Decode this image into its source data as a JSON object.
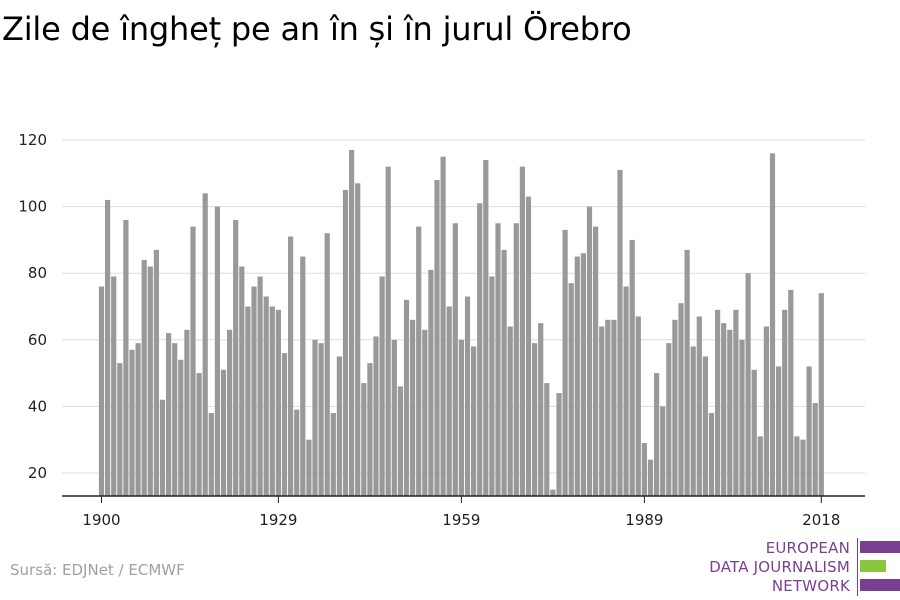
{
  "title": "Zile de îngheț pe an în și în jurul Örebro",
  "source": "Sursă: EDJNet / ECMWF",
  "logo": {
    "line1": "EUROPEAN",
    "line2": "DATA JOURNALISM",
    "line3": "NETWORK",
    "colors": {
      "purple": "#7a3f91",
      "green": "#8cc63f"
    }
  },
  "colors": {
    "bar": "#999999",
    "grid": "#dddddd",
    "axis": "#222222",
    "text": "#222222"
  },
  "chart_data": {
    "type": "bar",
    "title": "Zile de îngheț pe an în și în jurul Örebro",
    "xlabel": "",
    "ylabel": "",
    "x_start": 1900,
    "x_ticks": [
      1900,
      1929,
      1959,
      1989,
      2018
    ],
    "y_ticks": [
      20,
      40,
      60,
      80,
      100,
      120
    ],
    "ylim": [
      13,
      121
    ],
    "grid": true,
    "values": [
      76,
      102,
      79,
      53,
      96,
      57,
      59,
      84,
      82,
      87,
      42,
      62,
      59,
      54,
      63,
      94,
      50,
      104,
      38,
      100,
      51,
      63,
      96,
      82,
      70,
      76,
      79,
      73,
      70,
      69,
      56,
      91,
      39,
      85,
      30,
      60,
      59,
      92,
      38,
      55,
      105,
      117,
      107,
      47,
      53,
      61,
      79,
      112,
      60,
      46,
      72,
      66,
      94,
      63,
      81,
      108,
      115,
      70,
      95,
      60,
      73,
      58,
      101,
      114,
      79,
      95,
      87,
      64,
      95,
      112,
      103,
      59,
      65,
      47,
      15,
      44,
      93,
      77,
      85,
      86,
      100,
      94,
      64,
      66,
      66,
      111,
      76,
      90,
      67,
      29,
      24,
      50,
      40,
      59,
      66,
      71,
      87,
      58,
      67,
      55,
      38,
      69,
      65,
      63,
      69,
      60,
      80,
      51,
      31,
      64,
      116,
      52,
      69,
      75,
      31,
      30,
      52,
      41,
      74
    ]
  }
}
